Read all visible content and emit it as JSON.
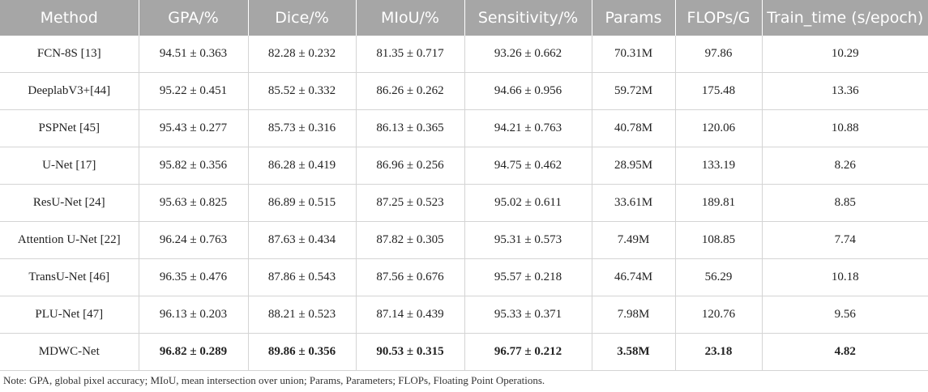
{
  "table": {
    "headers": [
      "Method",
      "GPA/%",
      "Dice/%",
      "MIoU/%",
      "Sensitivity/%",
      "Params",
      "FLOPs/G",
      "Train_time (s/epoch)"
    ],
    "rows": [
      [
        "FCN-8S [13]",
        "94.51 ± 0.363",
        "82.28 ± 0.232",
        "81.35 ± 0.717",
        "93.26 ± 0.662",
        "70.31M",
        "97.86",
        "10.29"
      ],
      [
        "DeeplabV3+[44]",
        "95.22 ± 0.451",
        "85.52 ± 0.332",
        "86.26 ± 0.262",
        "94.66 ± 0.956",
        "59.72M",
        "175.48",
        "13.36"
      ],
      [
        "PSPNet [45]",
        "95.43 ± 0.277",
        "85.73 ± 0.316",
        "86.13 ± 0.365",
        "94.21 ± 0.763",
        "40.78M",
        "120.06",
        "10.88"
      ],
      [
        "U-Net [17]",
        "95.82 ± 0.356",
        "86.28 ± 0.419",
        "86.96 ± 0.256",
        "94.75 ± 0.462",
        "28.95M",
        "133.19",
        "8.26"
      ],
      [
        "ResU-Net [24]",
        "95.63 ± 0.825",
        "86.89 ± 0.515",
        "87.25 ± 0.523",
        "95.02 ± 0.611",
        "33.61M",
        "189.81",
        "8.85"
      ],
      [
        "Attention U-Net [22]",
        "96.24 ± 0.763",
        "87.63 ± 0.434",
        "87.82 ± 0.305",
        "95.31 ± 0.573",
        "7.49M",
        "108.85",
        "7.74"
      ],
      [
        "TransU-Net [46]",
        "96.35 ± 0.476",
        "87.86 ± 0.543",
        "87.56 ± 0.676",
        "95.57 ± 0.218",
        "46.74M",
        "56.29",
        "10.18"
      ],
      [
        "PLU-Net [47]",
        "96.13 ± 0.203",
        "88.21 ± 0.523",
        "87.14 ± 0.439",
        "95.33 ± 0.371",
        "7.98M",
        "120.76",
        "9.56"
      ],
      [
        "MDWC-Net",
        "96.82 ± 0.289",
        "89.86 ± 0.356",
        "90.53 ± 0.315",
        "96.77 ± 0.212",
        "3.58M",
        "23.18",
        "4.82"
      ]
    ]
  },
  "note": "Note: GPA, global pixel accuracy; MIoU, mean intersection over union; Params, Parameters; FLOPs, Floating Point Operations."
}
